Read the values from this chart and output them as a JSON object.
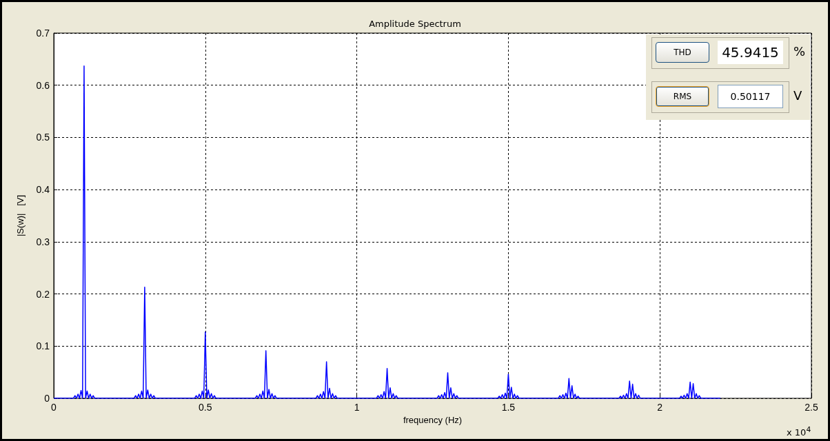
{
  "chart_data": {
    "type": "line",
    "title": "Amplitude Spectrum",
    "xlabel": "frequency (Hz)",
    "ylabel": "|S(w)|   [V]",
    "x": [
      0,
      0.065,
      0.07,
      0.075,
      0.08,
      0.085,
      0.09,
      0.095,
      0.1,
      0.105,
      0.11,
      0.115,
      0.12,
      0.125,
      0.13,
      0.135,
      0.265,
      0.27,
      0.275,
      0.28,
      0.285,
      0.29,
      0.295,
      0.3,
      0.305,
      0.31,
      0.315,
      0.32,
      0.325,
      0.33,
      0.335,
      0.465,
      0.47,
      0.475,
      0.48,
      0.485,
      0.49,
      0.495,
      0.5,
      0.505,
      0.51,
      0.515,
      0.52,
      0.525,
      0.53,
      0.535,
      0.665,
      0.67,
      0.675,
      0.68,
      0.685,
      0.69,
      0.695,
      0.7,
      0.705,
      0.71,
      0.715,
      0.72,
      0.725,
      0.73,
      0.735,
      0.865,
      0.87,
      0.875,
      0.88,
      0.885,
      0.89,
      0.895,
      0.9,
      0.905,
      0.91,
      0.915,
      0.92,
      0.925,
      0.93,
      0.935,
      1.065,
      1.07,
      1.075,
      1.08,
      1.085,
      1.09,
      1.095,
      1.1,
      1.105,
      1.11,
      1.115,
      1.12,
      1.125,
      1.13,
      1.135,
      1.265,
      1.27,
      1.275,
      1.28,
      1.285,
      1.29,
      1.295,
      1.3,
      1.305,
      1.31,
      1.315,
      1.32,
      1.325,
      1.33,
      1.335,
      1.465,
      1.47,
      1.475,
      1.48,
      1.485,
      1.49,
      1.495,
      1.5,
      1.505,
      1.51,
      1.515,
      1.52,
      1.525,
      1.53,
      1.535,
      1.665,
      1.67,
      1.675,
      1.68,
      1.685,
      1.69,
      1.695,
      1.7,
      1.705,
      1.71,
      1.715,
      1.72,
      1.725,
      1.73,
      1.735,
      1.865,
      1.87,
      1.875,
      1.88,
      1.885,
      1.89,
      1.895,
      1.9,
      1.905,
      1.91,
      1.915,
      1.92,
      1.925,
      1.93,
      1.935,
      2.065,
      2.07,
      2.075,
      2.08,
      2.085,
      2.09,
      2.095,
      2.1,
      2.105,
      2.11,
      2.115,
      2.12,
      2.125,
      2.13,
      2.135,
      2.2
    ],
    "series": [
      {
        "color": "#0000ff",
        "values": [
          0,
          0,
          0.005,
          0,
          0.008,
          0,
          0.015,
          0,
          0.637,
          0,
          0.014,
          0,
          0.008,
          0,
          0.005,
          0,
          0,
          0.005,
          0,
          0.008,
          0,
          0.014,
          0,
          0.213,
          0,
          0.016,
          0,
          0.008,
          0,
          0.005,
          0,
          0,
          0.005,
          0,
          0.008,
          0,
          0.014,
          0,
          0.127,
          0,
          0.016,
          0,
          0.009,
          0,
          0.005,
          0,
          0,
          0.005,
          0,
          0.008,
          0,
          0.014,
          0,
          0.091,
          0,
          0.017,
          0,
          0.009,
          0,
          0.005,
          0,
          0,
          0.005,
          0,
          0.008,
          0,
          0.013,
          0,
          0.07,
          0,
          0.019,
          0,
          0.009,
          0,
          0.005,
          0,
          0,
          0.005,
          0,
          0.007,
          0,
          0.013,
          0,
          0.057,
          0,
          0.02,
          0,
          0.009,
          0,
          0.005,
          0,
          0,
          0.005,
          0,
          0.007,
          0,
          0.011,
          0,
          0.049,
          0,
          0.02,
          0,
          0.009,
          0,
          0.005,
          0,
          0,
          0.004,
          0,
          0.007,
          0,
          0.01,
          0,
          0.046,
          0,
          0.021,
          0,
          0.008,
          0,
          0.005,
          0,
          0,
          0.005,
          0,
          0.007,
          0,
          0.01,
          0,
          0.038,
          0,
          0.024,
          0,
          0.008,
          0,
          0.004,
          0,
          0,
          0.004,
          0,
          0.006,
          0,
          0.009,
          0,
          0.033,
          0,
          0.027,
          0,
          0.009,
          0,
          0.006,
          0,
          0,
          0.004,
          0,
          0.006,
          0,
          0.009,
          0,
          0.031,
          0,
          0.028,
          0,
          0.009,
          0,
          0.005,
          0,
          0
        ]
      }
    ],
    "xlim": [
      0,
      2.5
    ],
    "xticks": [
      0,
      0.5,
      1,
      1.5,
      2,
      2.5
    ],
    "ylim": [
      0,
      0.7
    ],
    "yticks": [
      0,
      0.1,
      0.2,
      0.3,
      0.4,
      0.5,
      0.6,
      0.7
    ],
    "grid": true,
    "marker": "none",
    "line_style": "solid",
    "annotations": [
      "THD",
      "45.9415",
      "%",
      "RMS",
      "0.50117",
      "V",
      "x 10$^{4}$"
    ]
  }
}
